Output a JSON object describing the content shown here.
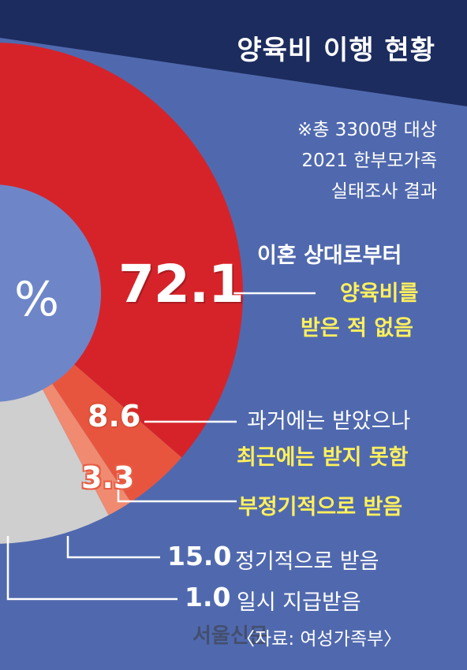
{
  "title": "양육비 이행 현황",
  "note": {
    "line1": "※총 3300명 대상",
    "line2": "2021 한부모가족",
    "line3": "실태조사 결과"
  },
  "unit": "%",
  "source": "〈자료: 여성가족부〉",
  "watermark": "서울신문",
  "colors": {
    "background": "#4a62a6",
    "banner": "#1c2c5e",
    "never_received": "#d6232a",
    "received_past": "#e8553f",
    "irregular": "#f08a70",
    "regular": "#cfcfcf",
    "lump_sum": "#6b6b6b",
    "center": "#6e86c8",
    "highlight_text": "#fff05c"
  },
  "chart_data": {
    "type": "pie",
    "donut": true,
    "title": "양육비 이행 현황",
    "unit": "%",
    "slices": [
      {
        "value": 72.1,
        "value_label": "72.1",
        "label_lines": [
          "이혼 상대로부터",
          "양육비를",
          "받은 적 없음"
        ]
      },
      {
        "value": 8.6,
        "value_label": "8.6",
        "label_lines": [
          "과거에는 받았으나",
          "최근에는 받지 못함"
        ]
      },
      {
        "value": 3.3,
        "value_label": "3.3",
        "label_lines": [
          "부정기적으로 받음"
        ]
      },
      {
        "value": 15.0,
        "value_label": "15.0",
        "label_lines": [
          "정기적으로 받음"
        ]
      },
      {
        "value": 1.0,
        "value_label": "1.0",
        "label_lines": [
          "일시 지급받음"
        ]
      }
    ]
  }
}
